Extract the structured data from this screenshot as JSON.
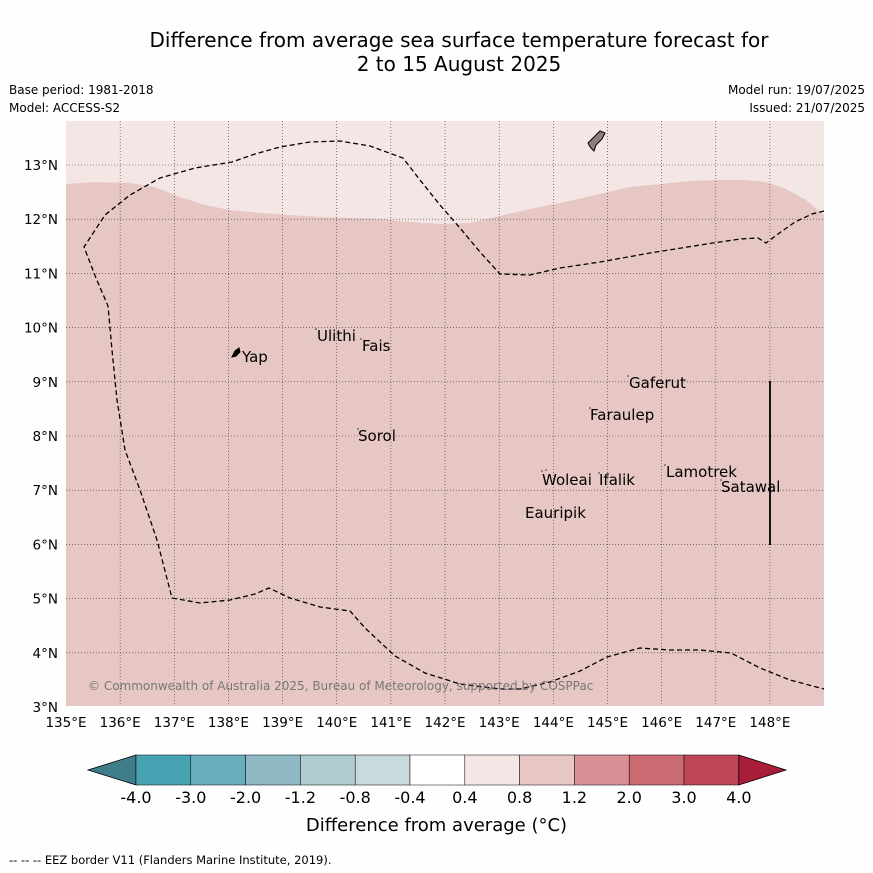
{
  "title_line1": "Difference from average sea surface temperature forecast for",
  "title_line2": "2 to 15 August 2025",
  "base_period": "Base period: 1981-2018",
  "model": "Model: ACCESS-S2",
  "model_run": "Model run: 19/07/2025",
  "issued": "Issued: 21/07/2025",
  "lon_labels": [
    "135°E",
    "136°E",
    "137°E",
    "138°E",
    "139°E",
    "140°E",
    "141°E",
    "142°E",
    "143°E",
    "144°E",
    "145°E",
    "146°E",
    "147°E",
    "148°E"
  ],
  "lat_labels": [
    "13°N",
    "12°N",
    "11°N",
    "10°N",
    "9°N",
    "8°N",
    "7°N",
    "6°N",
    "5°N",
    "4°N",
    "3°N"
  ],
  "places": {
    "yap": "Yap",
    "ulithi": "Ulithi",
    "fais": "Fais",
    "gaferut": "Gaferut",
    "faraulep": "Faraulep",
    "sorol": "Sorol",
    "woleai": "Woleai",
    "ifalik": "Ifalik",
    "lamotrek": "Lamotrek",
    "satawal": "Satawal",
    "eauripik": "Eauripik"
  },
  "copyright": "© Commonwealth of Australia 2025, Bureau of Meteorology, supported by COSPPac",
  "colorbar": {
    "labels": [
      "-4.0",
      "-3.0",
      "-2.0",
      "-1.2",
      "-0.8",
      "-0.4",
      "0.4",
      "0.8",
      "1.2",
      "2.0",
      "3.0",
      "4.0"
    ],
    "colors": [
      "#3e7d8a",
      "#47a2b2",
      "#6aaebc",
      "#8db8c4",
      "#aecbd0",
      "#c9dadd",
      "#ffffff",
      "#f4e6e5",
      "#e7c7c3",
      "#d88f95",
      "#ca6a73",
      "#bf4656",
      "#a81d38"
    ],
    "title": "Difference from average (°C)"
  },
  "footer": "--  --  -- EEZ border V11 (Flanders Marine Institute, 2019).",
  "chart_data": {
    "type": "map",
    "lon_range": [
      135,
      149
    ],
    "lat_range": [
      3,
      13.8
    ],
    "fill_classes": {
      "north_band": "0.4 to 0.8",
      "main_area": "0.8 to 1.2"
    },
    "grid": true
  }
}
